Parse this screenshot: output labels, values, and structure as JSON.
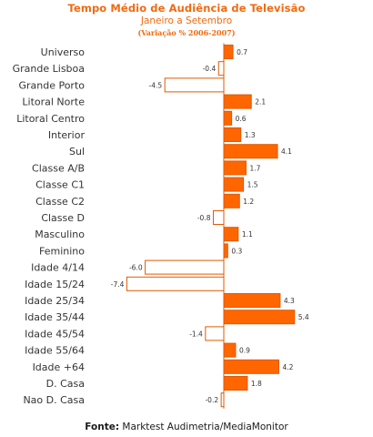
{
  "header": {
    "title": "Tempo Médio de Audiência  de Televisão",
    "subtitle": "Janeiro a Setembro",
    "note": "(Variação % 2006-2007)"
  },
  "footer": {
    "source_label": "Fonte:",
    "source_text": " Marktest Audimetria/MediaMonitor"
  },
  "colors": {
    "bar_fill": "#ff6600",
    "bar_stroke": "#e05a00",
    "negative_fill": "#ffffff",
    "text": "#333333"
  },
  "chart_data": {
    "type": "bar",
    "orientation": "horizontal",
    "categories": [
      "Universo",
      "Grande Lisboa",
      "Grande Porto",
      "Litoral Norte",
      "Litoral Centro",
      "Interior",
      "Sul",
      "Classe A/B",
      "Classe C1",
      "Classe C2",
      "Classe D",
      "Masculino",
      "Feminino",
      "Idade 4/14",
      "Idade 15/24",
      "Idade 25/34",
      "Idade 35/44",
      "Idade 45/54",
      "Idade 55/64",
      "Idade +64",
      "D. Casa",
      "Nao D. Casa"
    ],
    "values": [
      0.7,
      -0.4,
      -4.5,
      2.1,
      0.6,
      1.3,
      4.1,
      1.7,
      1.5,
      1.2,
      -0.8,
      1.1,
      0.3,
      -6.0,
      -7.4,
      4.3,
      5.4,
      -1.4,
      0.9,
      4.2,
      1.8,
      -0.2
    ],
    "value_labels": [
      "0.7",
      "-0.4",
      "-4.5",
      "2.1",
      "0.6",
      "1.3",
      "4.1",
      "1.7",
      "1.5",
      "1.2",
      "-0.8",
      "1.1",
      "0.3",
      "-6.0",
      "-7.4",
      "4.3",
      "5.4",
      "-1.4",
      "0.9",
      "4.2",
      "1.8",
      "-0.2"
    ],
    "grid": false,
    "legend": "none"
  }
}
